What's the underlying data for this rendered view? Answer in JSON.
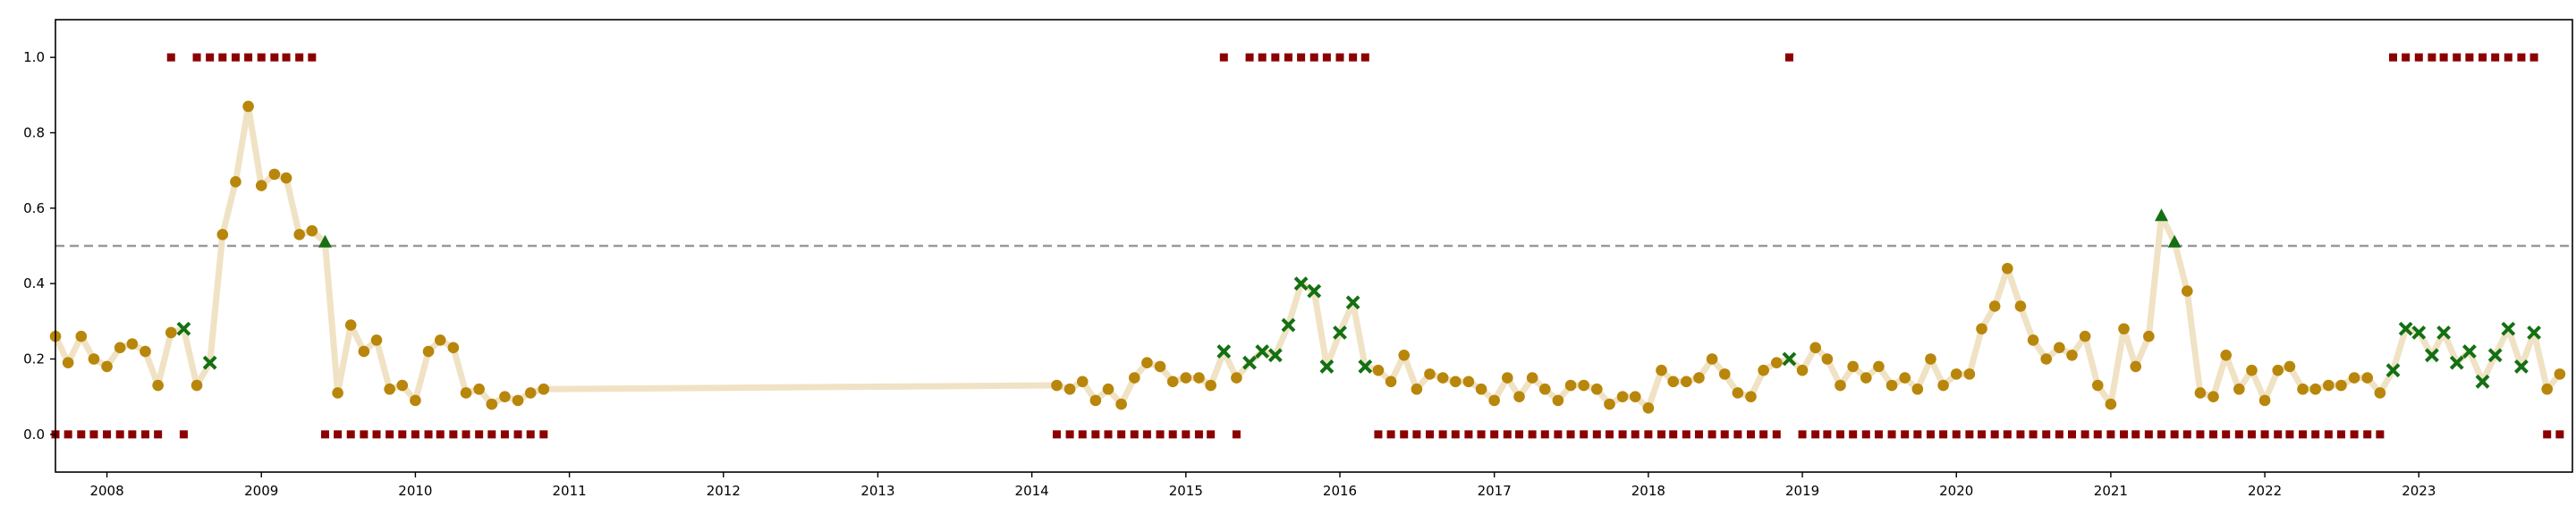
{
  "chart_data": {
    "type": "scatter",
    "xlim": [
      "2007-09-01",
      "2023-12-31"
    ],
    "ylim": [
      -0.1,
      1.1
    ],
    "x_ticks": [
      "2008",
      "2009",
      "2010",
      "2011",
      "2012",
      "2013",
      "2014",
      "2015",
      "2016",
      "2017",
      "2018",
      "2019",
      "2020",
      "2021",
      "2022",
      "2023"
    ],
    "y_ticks": [
      "0.0",
      "0.2",
      "0.4",
      "0.6",
      "0.8",
      "1.0"
    ],
    "threshold": 0.5,
    "colors": {
      "line": "#f0e2c4",
      "point": "#b8860b",
      "marker": "#137013",
      "square": "#8b0000",
      "threshold": "#999999"
    },
    "series": [
      {
        "values": [
          [
            "2007-09",
            0.26
          ],
          [
            "2007-10",
            0.19
          ],
          [
            "2007-11",
            0.26
          ],
          [
            "2007-12",
            0.2
          ],
          [
            "2008-01",
            0.18
          ],
          [
            "2008-02",
            0.23
          ],
          [
            "2008-03",
            0.24
          ],
          [
            "2008-04",
            0.22
          ],
          [
            "2008-05",
            0.13
          ],
          [
            "2008-06",
            0.27
          ],
          [
            "2008-07",
            0.28
          ],
          [
            "2008-08",
            0.13
          ],
          [
            "2008-09",
            0.19
          ],
          [
            "2008-10",
            0.53
          ],
          [
            "2008-11",
            0.67
          ],
          [
            "2008-12",
            0.87
          ],
          [
            "2009-01",
            0.66
          ],
          [
            "2009-02",
            0.69
          ],
          [
            "2009-03",
            0.68
          ],
          [
            "2009-04",
            0.53
          ],
          [
            "2009-05",
            0.54
          ],
          [
            "2009-06",
            0.51
          ],
          [
            "2009-07",
            0.11
          ],
          [
            "2009-08",
            0.29
          ],
          [
            "2009-09",
            0.22
          ],
          [
            "2009-10",
            0.25
          ],
          [
            "2009-11",
            0.12
          ],
          [
            "2009-12",
            0.13
          ],
          [
            "2010-01",
            0.09
          ],
          [
            "2010-02",
            0.22
          ],
          [
            "2010-03",
            0.25
          ],
          [
            "2010-04",
            0.23
          ],
          [
            "2010-05",
            0.11
          ],
          [
            "2010-06",
            0.12
          ],
          [
            "2010-07",
            0.08
          ],
          [
            "2010-08",
            0.1
          ],
          [
            "2010-09",
            0.09
          ],
          [
            "2010-10",
            0.11
          ],
          [
            "2010-11",
            0.12
          ],
          [
            "2014-03",
            0.13
          ],
          [
            "2014-04",
            0.12
          ],
          [
            "2014-05",
            0.14
          ],
          [
            "2014-06",
            0.09
          ],
          [
            "2014-07",
            0.12
          ],
          [
            "2014-08",
            0.08
          ],
          [
            "2014-09",
            0.15
          ],
          [
            "2014-10",
            0.19
          ],
          [
            "2014-11",
            0.18
          ],
          [
            "2014-12",
            0.14
          ],
          [
            "2015-01",
            0.15
          ],
          [
            "2015-02",
            0.15
          ],
          [
            "2015-03",
            0.13
          ],
          [
            "2015-04",
            0.22
          ],
          [
            "2015-05",
            0.15
          ],
          [
            "2015-06",
            0.19
          ],
          [
            "2015-07",
            0.22
          ],
          [
            "2015-08",
            0.21
          ],
          [
            "2015-09",
            0.29
          ],
          [
            "2015-10",
            0.4
          ],
          [
            "2015-11",
            0.38
          ],
          [
            "2015-12",
            0.18
          ],
          [
            "2016-01",
            0.27
          ],
          [
            "2016-02",
            0.35
          ],
          [
            "2016-03",
            0.18
          ],
          [
            "2016-04",
            0.17
          ],
          [
            "2016-05",
            0.14
          ],
          [
            "2016-06",
            0.21
          ],
          [
            "2016-07",
            0.12
          ],
          [
            "2016-08",
            0.16
          ],
          [
            "2016-09",
            0.15
          ],
          [
            "2016-10",
            0.14
          ],
          [
            "2016-11",
            0.14
          ],
          [
            "2016-12",
            0.12
          ],
          [
            "2017-01",
            0.09
          ],
          [
            "2017-02",
            0.15
          ],
          [
            "2017-03",
            0.1
          ],
          [
            "2017-04",
            0.15
          ],
          [
            "2017-05",
            0.12
          ],
          [
            "2017-06",
            0.09
          ],
          [
            "2017-07",
            0.13
          ],
          [
            "2017-08",
            0.13
          ],
          [
            "2017-09",
            0.12
          ],
          [
            "2017-10",
            0.08
          ],
          [
            "2017-11",
            0.1
          ],
          [
            "2017-12",
            0.1
          ],
          [
            "2018-01",
            0.07
          ],
          [
            "2018-02",
            0.17
          ],
          [
            "2018-03",
            0.14
          ],
          [
            "2018-04",
            0.14
          ],
          [
            "2018-05",
            0.15
          ],
          [
            "2018-06",
            0.2
          ],
          [
            "2018-07",
            0.16
          ],
          [
            "2018-08",
            0.11
          ],
          [
            "2018-09",
            0.1
          ],
          [
            "2018-10",
            0.17
          ],
          [
            "2018-11",
            0.19
          ],
          [
            "2018-12",
            0.2
          ],
          [
            "2019-01",
            0.17
          ],
          [
            "2019-02",
            0.23
          ],
          [
            "2019-03",
            0.2
          ],
          [
            "2019-04",
            0.13
          ],
          [
            "2019-05",
            0.18
          ],
          [
            "2019-06",
            0.15
          ],
          [
            "2019-07",
            0.18
          ],
          [
            "2019-08",
            0.13
          ],
          [
            "2019-09",
            0.15
          ],
          [
            "2019-10",
            0.12
          ],
          [
            "2019-11",
            0.2
          ],
          [
            "2019-12",
            0.13
          ],
          [
            "2020-01",
            0.16
          ],
          [
            "2020-02",
            0.16
          ],
          [
            "2020-03",
            0.28
          ],
          [
            "2020-04",
            0.34
          ],
          [
            "2020-05",
            0.44
          ],
          [
            "2020-06",
            0.34
          ],
          [
            "2020-07",
            0.25
          ],
          [
            "2020-08",
            0.2
          ],
          [
            "2020-09",
            0.23
          ],
          [
            "2020-10",
            0.21
          ],
          [
            "2020-11",
            0.26
          ],
          [
            "2020-12",
            0.13
          ],
          [
            "2021-01",
            0.08
          ],
          [
            "2021-02",
            0.28
          ],
          [
            "2021-03",
            0.18
          ],
          [
            "2021-04",
            0.26
          ],
          [
            "2021-05",
            0.58
          ],
          [
            "2021-06",
            0.51
          ],
          [
            "2021-07",
            0.38
          ],
          [
            "2021-08",
            0.11
          ],
          [
            "2021-09",
            0.1
          ],
          [
            "2021-10",
            0.21
          ],
          [
            "2021-11",
            0.12
          ],
          [
            "2021-12",
            0.17
          ],
          [
            "2022-01",
            0.09
          ],
          [
            "2022-02",
            0.17
          ],
          [
            "2022-03",
            0.18
          ],
          [
            "2022-04",
            0.12
          ],
          [
            "2022-05",
            0.12
          ],
          [
            "2022-06",
            0.13
          ],
          [
            "2022-07",
            0.13
          ],
          [
            "2022-08",
            0.15
          ],
          [
            "2022-09",
            0.15
          ],
          [
            "2022-10",
            0.11
          ],
          [
            "2022-11",
            0.17
          ],
          [
            "2022-12",
            0.28
          ],
          [
            "2023-01",
            0.27
          ],
          [
            "2023-02",
            0.21
          ],
          [
            "2023-03",
            0.27
          ],
          [
            "2023-04",
            0.19
          ],
          [
            "2023-05",
            0.22
          ],
          [
            "2023-06",
            0.14
          ],
          [
            "2023-07",
            0.21
          ],
          [
            "2023-08",
            0.28
          ],
          [
            "2023-09",
            0.18
          ],
          [
            "2023-10",
            0.27
          ],
          [
            "2023-11",
            0.12
          ],
          [
            "2023-12",
            0.16
          ]
        ],
        "x_markers": [
          "2008-07",
          "2008-09",
          "2015-04",
          "2015-06",
          "2015-07",
          "2015-08",
          "2015-09",
          "2015-10",
          "2015-11",
          "2015-12",
          "2016-01",
          "2016-02",
          "2016-03",
          "2018-12",
          "2022-11",
          "2022-12",
          "2023-01",
          "2023-02",
          "2023-03",
          "2023-04",
          "2023-05",
          "2023-06",
          "2023-07",
          "2023-08",
          "2023-09",
          "2023-10"
        ],
        "triangle_markers": [
          "2009-06",
          "2021-05",
          "2021-06"
        ]
      }
    ],
    "squares_top": [
      "2008-06",
      "2008-08",
      "2008-09",
      "2008-10",
      "2008-11",
      "2008-12",
      "2009-01",
      "2009-02",
      "2009-03",
      "2009-04",
      "2009-05",
      "2015-04",
      "2015-06",
      "2015-07",
      "2015-08",
      "2015-09",
      "2015-10",
      "2015-11",
      "2015-12",
      "2016-01",
      "2016-02",
      "2016-03",
      "2018-12",
      "2022-11",
      "2022-12",
      "2023-01",
      "2023-02",
      "2023-03",
      "2023-04",
      "2023-05",
      "2023-06",
      "2023-07",
      "2023-08",
      "2023-09",
      "2023-10"
    ],
    "squares_bottom": [
      "2007-09",
      "2007-10",
      "2007-11",
      "2007-12",
      "2008-01",
      "2008-02",
      "2008-03",
      "2008-04",
      "2008-05",
      "2008-07",
      "2009-06",
      "2009-07",
      "2009-08",
      "2009-09",
      "2009-10",
      "2009-11",
      "2009-12",
      "2010-01",
      "2010-02",
      "2010-03",
      "2010-04",
      "2010-05",
      "2010-06",
      "2010-07",
      "2010-08",
      "2010-09",
      "2010-10",
      "2010-11",
      "2014-03",
      "2014-04",
      "2014-05",
      "2014-06",
      "2014-07",
      "2014-08",
      "2014-09",
      "2014-10",
      "2014-11",
      "2014-12",
      "2015-01",
      "2015-02",
      "2015-03",
      "2015-05",
      "2016-04",
      "2016-05",
      "2016-06",
      "2016-07",
      "2016-08",
      "2016-09",
      "2016-10",
      "2016-11",
      "2016-12",
      "2017-01",
      "2017-02",
      "2017-03",
      "2017-04",
      "2017-05",
      "2017-06",
      "2017-07",
      "2017-08",
      "2017-09",
      "2017-10",
      "2017-11",
      "2017-12",
      "2018-01",
      "2018-02",
      "2018-03",
      "2018-04",
      "2018-05",
      "2018-06",
      "2018-07",
      "2018-08",
      "2018-09",
      "2018-10",
      "2018-11",
      "2019-01",
      "2019-02",
      "2019-03",
      "2019-04",
      "2019-05",
      "2019-06",
      "2019-07",
      "2019-08",
      "2019-09",
      "2019-10",
      "2019-11",
      "2019-12",
      "2020-01",
      "2020-02",
      "2020-03",
      "2020-04",
      "2020-05",
      "2020-06",
      "2020-07",
      "2020-08",
      "2020-09",
      "2020-10",
      "2020-11",
      "2020-12",
      "2021-01",
      "2021-02",
      "2021-03",
      "2021-04",
      "2021-05",
      "2021-06",
      "2021-07",
      "2021-08",
      "2021-09",
      "2021-10",
      "2021-11",
      "2021-12",
      "2022-01",
      "2022-02",
      "2022-03",
      "2022-04",
      "2022-05",
      "2022-06",
      "2022-07",
      "2022-08",
      "2022-09",
      "2022-10",
      "2023-11",
      "2023-12"
    ],
    "grid": false,
    "legend": "none"
  }
}
